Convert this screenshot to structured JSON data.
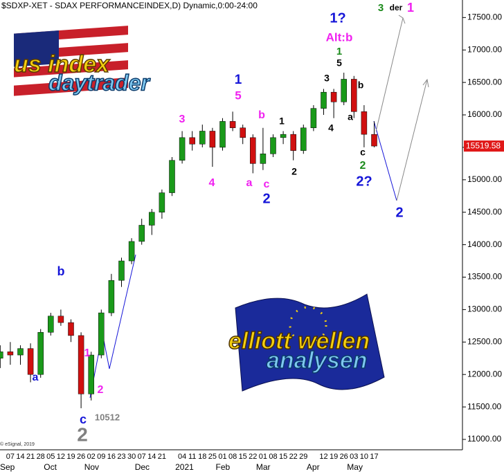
{
  "chart_data": {
    "type": "candlestick",
    "title": "$SDXP-XET - SDAX PERFORMANCEINDEX,D) Dynamic,0:00-24:00",
    "credit": "© eSignal, 2019",
    "categories": [
      null,
      "07",
      "14",
      "21",
      "28",
      "05",
      "12",
      "19",
      "26",
      "02",
      "09",
      "16",
      "23",
      "30",
      "07",
      "14",
      "21",
      null,
      "04",
      "11",
      "18",
      "25",
      "01",
      "08",
      "15",
      "22",
      "01",
      "08",
      "15",
      "22",
      "29",
      null,
      "12",
      "19",
      "26",
      "03",
      "10",
      "17"
    ],
    "months": [
      "Sep",
      null,
      null,
      null,
      null,
      "Oct",
      null,
      null,
      null,
      "Nov",
      null,
      null,
      null,
      null,
      "Dec",
      null,
      null,
      null,
      "2021",
      null,
      null,
      null,
      "Feb",
      null,
      null,
      null,
      "Mar",
      null,
      null,
      null,
      null,
      "Apr",
      null,
      null,
      null,
      "May",
      null,
      null
    ],
    "open": [
      12250,
      12350,
      12300,
      12400,
      12000,
      12650,
      12900,
      12800,
      12600,
      11700,
      12300,
      12950,
      13450,
      13750,
      14050,
      14300,
      14500,
      14800,
      15300,
      15650,
      15550,
      15750,
      15500,
      15900,
      15800,
      15650,
      15250,
      15400,
      15650,
      15700,
      15450,
      15800,
      16100,
      16350,
      16200,
      16550,
      16050,
      15700
    ],
    "high": [
      12450,
      12500,
      12450,
      12480,
      12700,
      12950,
      13000,
      12850,
      12650,
      12350,
      13000,
      13550,
      13800,
      14100,
      14400,
      14550,
      14850,
      15350,
      15750,
      15750,
      15850,
      15800,
      15950,
      16050,
      15850,
      15700,
      15800,
      15700,
      15750,
      15750,
      15850,
      16150,
      16400,
      16400,
      16650,
      16600,
      16150,
      15900
    ],
    "low": [
      12100,
      12150,
      12150,
      11880,
      11950,
      12600,
      12750,
      12500,
      11480,
      11600,
      12250,
      12900,
      13350,
      13700,
      14000,
      14150,
      14400,
      14750,
      15250,
      15450,
      15500,
      15200,
      15450,
      15750,
      15550,
      15100,
      15150,
      15350,
      15550,
      15300,
      15400,
      15750,
      16000,
      15950,
      16150,
      15950,
      15500,
      15500
    ],
    "close": [
      12350,
      12300,
      12400,
      12000,
      12650,
      12900,
      12800,
      12600,
      11700,
      12300,
      12950,
      13450,
      13750,
      14050,
      14300,
      14500,
      14800,
      15300,
      15650,
      15550,
      15750,
      15500,
      15900,
      15800,
      15650,
      15250,
      15400,
      15650,
      15700,
      15450,
      15800,
      16100,
      16350,
      16200,
      16550,
      16050,
      15700,
      15519.58
    ],
    "up_color": "#1a9a1a",
    "down_color": "#d01010",
    "ylim": [
      10840,
      17770
    ],
    "yticks": [
      {
        "value": 11000,
        "label": "11000.00"
      },
      {
        "value": 11500,
        "label": "11500.00"
      },
      {
        "value": 12000,
        "label": "12000.00"
      },
      {
        "value": 12500,
        "label": "12500.00"
      },
      {
        "value": 13000,
        "label": "13000.00"
      },
      {
        "value": 13500,
        "label": "13500.00"
      },
      {
        "value": 14000,
        "label": "14000.00"
      },
      {
        "value": 14500,
        "label": "14500.00"
      },
      {
        "value": 15000,
        "label": "15000.00"
      },
      {
        "value": 15500,
        "label": "15500.00"
      },
      {
        "value": 16000,
        "label": "16000.00"
      },
      {
        "value": 16500,
        "label": "16500.00"
      },
      {
        "value": 17000,
        "label": "17000.00"
      },
      {
        "value": 17500,
        "label": "17500.00"
      }
    ],
    "price_tag_color": "#e01818",
    "annotations": [
      {
        "text": "1?",
        "color": "#1515d8"
      },
      {
        "text": "Alt:b",
        "color": "#f020f0"
      },
      {
        "text": "1",
        "color": "#1a8a1a"
      },
      {
        "text": "5",
        "color": "#000000"
      },
      {
        "text": "3",
        "color": "#000000"
      },
      {
        "text": "b",
        "color": "#000000"
      },
      {
        "text": "4",
        "color": "#000000"
      },
      {
        "text": "a",
        "color": "#000000"
      },
      {
        "text": "c",
        "color": "#000000"
      },
      {
        "text": "2",
        "color": "#1a8a1a"
      },
      {
        "text": "2?",
        "color": "#1515d8"
      },
      {
        "text": "2",
        "color": "#1515d8"
      },
      {
        "text": "3",
        "color": "#1a8a1a"
      },
      {
        "text": "der",
        "color": "#000000"
      },
      {
        "text": "1",
        "color": "#f020f0"
      },
      {
        "text": "1",
        "color": "#1515d8"
      },
      {
        "text": "5",
        "color": "#f020f0"
      },
      {
        "text": "b",
        "color": "#f020f0"
      },
      {
        "text": "1",
        "color": "#000000"
      },
      {
        "text": "3",
        "color": "#f020f0"
      },
      {
        "text": "4",
        "color": "#f020f0"
      },
      {
        "text": "a",
        "color": "#f020f0"
      },
      {
        "text": "c",
        "color": "#f020f0"
      },
      {
        "text": "2",
        "color": "#1515d8"
      },
      {
        "text": "2",
        "color": "#000000"
      },
      {
        "text": "b",
        "color": "#1515d8"
      },
      {
        "text": "a",
        "color": "#1515d8"
      },
      {
        "text": "1",
        "color": "#f020f0"
      },
      {
        "text": "2",
        "color": "#f020f0"
      },
      {
        "text": "c",
        "color": "#1515d8"
      },
      {
        "text": "10512",
        "color": "#808080"
      },
      {
        "text": "2",
        "color": "#808080"
      }
    ],
    "logos": {
      "us_index": "us index",
      "daytrader": "daytrader",
      "elliott": "elliott wellen",
      "analysen": "analysen"
    }
  }
}
